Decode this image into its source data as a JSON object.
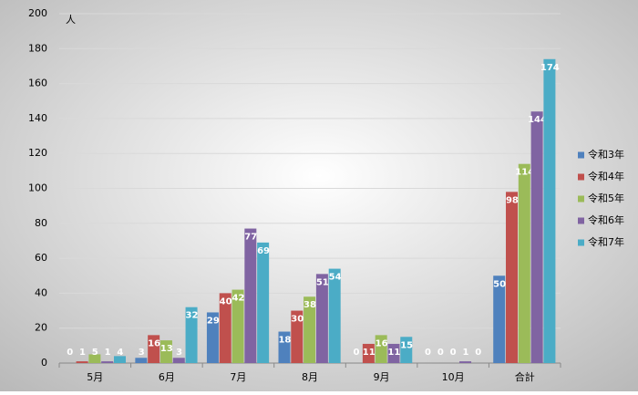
{
  "chart_data": {
    "type": "bar",
    "ylabel": "人",
    "categories": [
      "5月",
      "6月",
      "7月",
      "8月",
      "9月",
      "10月",
      "合計"
    ],
    "series": [
      {
        "name": "令和3年",
        "color": "#4f81bd",
        "values": [
          0,
          3,
          29,
          18,
          0,
          0,
          50
        ]
      },
      {
        "name": "令和4年",
        "color": "#c0504d",
        "values": [
          1,
          16,
          40,
          30,
          11,
          0,
          98
        ]
      },
      {
        "name": "令和5年",
        "color": "#9bbb59",
        "values": [
          5,
          13,
          42,
          38,
          16,
          0,
          114
        ]
      },
      {
        "name": "令和6年",
        "color": "#8064a2",
        "values": [
          1,
          3,
          77,
          51,
          11,
          1,
          144
        ]
      },
      {
        "name": "令和7年",
        "color": "#4bacc6",
        "values": [
          4,
          32,
          69,
          54,
          15,
          0,
          174
        ]
      }
    ],
    "ylim": [
      0,
      200
    ],
    "yticks": [
      0,
      20,
      40,
      60,
      80,
      100,
      120,
      140,
      160,
      180,
      200
    ],
    "grid": true,
    "legend": "right"
  }
}
